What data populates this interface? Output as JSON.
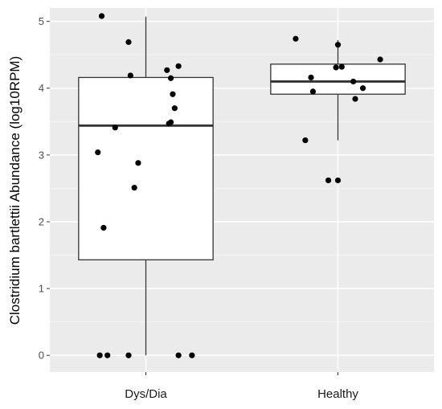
{
  "chart_data": {
    "type": "box",
    "title": "",
    "xlabel": "",
    "ylabel": "Clostridium bartlettii Abundance (log10RPM)",
    "ylim": [
      -0.25,
      5.2
    ],
    "yticks": [
      0,
      1,
      2,
      3,
      4,
      5
    ],
    "ytick_labels": [
      "0",
      "1",
      "2",
      "3",
      "4",
      "5"
    ],
    "grid": true,
    "legend": "none",
    "categories": [
      "Dys/Dia",
      "Healthy"
    ],
    "boxes": [
      {
        "category": "Dys/Dia",
        "whisker_low": 0,
        "q1": 1.43,
        "median": 3.44,
        "q3": 4.16,
        "whisker_high": 5.07,
        "points": [
          {
            "jitter": -0.23,
            "y": 5.08
          },
          {
            "jitter": -0.09,
            "y": 4.69
          },
          {
            "jitter": -0.08,
            "y": 4.19
          },
          {
            "jitter": 0.11,
            "y": 4.27
          },
          {
            "jitter": 0.13,
            "y": 4.15
          },
          {
            "jitter": 0.12,
            "y": 3.47
          },
          {
            "jitter": 0.13,
            "y": 3.49
          },
          {
            "jitter": 0.17,
            "y": 4.33
          },
          {
            "jitter": 0.14,
            "y": 3.91
          },
          {
            "jitter": 0.15,
            "y": 3.7
          },
          {
            "jitter": -0.16,
            "y": 3.41
          },
          {
            "jitter": -0.25,
            "y": 3.04
          },
          {
            "jitter": -0.04,
            "y": 2.88
          },
          {
            "jitter": -0.06,
            "y": 2.51
          },
          {
            "jitter": -0.22,
            "y": 1.91
          },
          {
            "jitter": -0.24,
            "y": 0.0
          },
          {
            "jitter": -0.2,
            "y": 0.0
          },
          {
            "jitter": -0.09,
            "y": 0.0
          },
          {
            "jitter": 0.17,
            "y": 0.0
          },
          {
            "jitter": 0.24,
            "y": 0.0
          }
        ]
      },
      {
        "category": "Healthy",
        "whisker_low": 3.22,
        "q1": 3.91,
        "median": 4.1,
        "q3": 4.36,
        "whisker_high": 4.72,
        "points": [
          {
            "jitter": -0.22,
            "y": 4.74
          },
          {
            "jitter": 0.0,
            "y": 4.65
          },
          {
            "jitter": 0.22,
            "y": 4.43
          },
          {
            "jitter": -0.01,
            "y": 4.31
          },
          {
            "jitter": -0.14,
            "y": 4.16
          },
          {
            "jitter": 0.08,
            "y": 4.1
          },
          {
            "jitter": 0.02,
            "y": 4.32
          },
          {
            "jitter": 0.13,
            "y": 4.0
          },
          {
            "jitter": -0.13,
            "y": 3.95
          },
          {
            "jitter": 0.09,
            "y": 3.84
          },
          {
            "jitter": -0.17,
            "y": 3.22
          },
          {
            "jitter": -0.05,
            "y": 2.62
          },
          {
            "jitter": 0.0,
            "y": 2.62
          }
        ]
      }
    ]
  }
}
